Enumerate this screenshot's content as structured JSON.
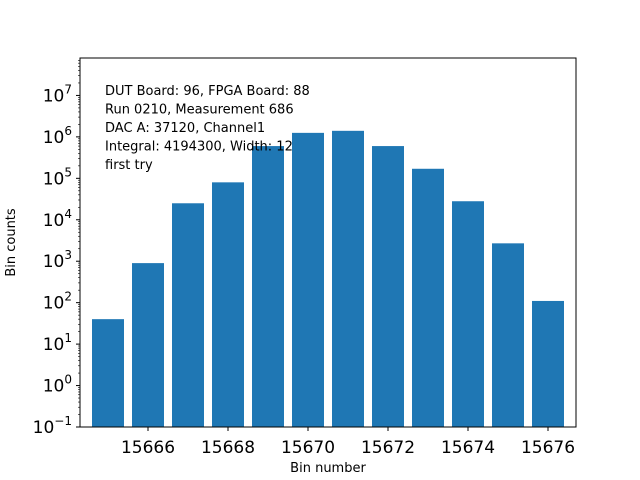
{
  "chart_data": {
    "type": "bar",
    "x": [
      15665,
      15666,
      15667,
      15668,
      15669,
      15670,
      15671,
      15672,
      15673,
      15674,
      15675,
      15676
    ],
    "values": [
      40,
      900,
      25000,
      80000,
      600000,
      1250000,
      1400000,
      600000,
      170000,
      28000,
      2700,
      110
    ],
    "xlabel": "Bin number",
    "ylabel": "Bin counts",
    "yscale": "log",
    "ylim": [
      0.1,
      80000000
    ],
    "xlim": [
      15664.3,
      15676.7
    ],
    "xticks": [
      15666,
      15668,
      15670,
      15672,
      15674,
      15676
    ],
    "yticks": [
      {
        "value": 0.1,
        "base": "10",
        "exp": "−1"
      },
      {
        "value": 1,
        "base": "10",
        "exp": "0"
      },
      {
        "value": 10,
        "base": "10",
        "exp": "1"
      },
      {
        "value": 100,
        "base": "10",
        "exp": "2"
      },
      {
        "value": 1000,
        "base": "10",
        "exp": "3"
      },
      {
        "value": 10000,
        "base": "10",
        "exp": "4"
      },
      {
        "value": 100000,
        "base": "10",
        "exp": "5"
      },
      {
        "value": 1000000,
        "base": "10",
        "exp": "6"
      },
      {
        "value": 10000000,
        "base": "10",
        "exp": "7"
      }
    ],
    "annotations": [
      "DUT Board: 96, FPGA Board: 88",
      "Run 0210, Measurement 686",
      "DAC A: 37120, Channel1",
      "Integral: 4194300, Width: 12",
      "first try"
    ],
    "bar_color": "#1f77b4",
    "grid": false,
    "legend": "none"
  }
}
